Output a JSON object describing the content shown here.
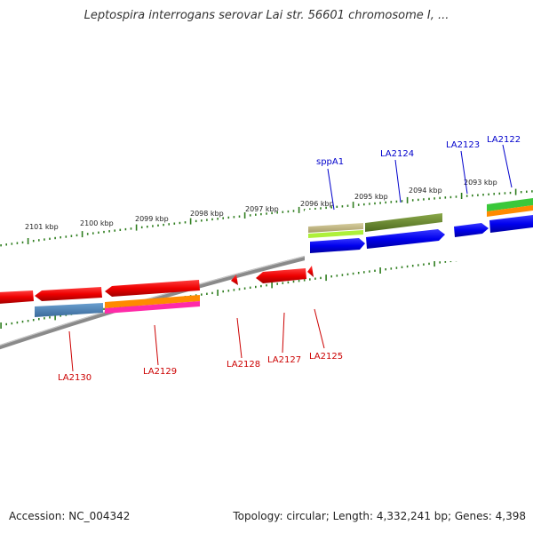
{
  "header": {
    "title": "Leptospira interrogans serovar Lai str. 56601 chromosome I, ..."
  },
  "footer": {
    "accession": "Accession: NC_004342",
    "summary": "Topology: circular; Length: 4,332,241 bp; Genes: 4,398"
  },
  "scale": {
    "ticks": [
      "2101 kbp",
      "2100 kbp",
      "2099 kbp",
      "2098 kbp",
      "2097 kbp",
      "2096 kbp",
      "2095 kbp",
      "2094 kbp",
      "2093 kbp"
    ]
  },
  "genes_top": [
    {
      "label": "sppA1",
      "color": "#0000cc"
    },
    {
      "label": "LA2124",
      "color": "#0000cc"
    },
    {
      "label": "LA2123",
      "color": "#0000cc"
    },
    {
      "label": "LA2122",
      "color": "#0000cc"
    }
  ],
  "genes_bottom": [
    {
      "label": "LA2130",
      "color": "#cc0000"
    },
    {
      "label": "LA2129",
      "color": "#cc0000"
    },
    {
      "label": "LA2128",
      "color": "#cc0000"
    },
    {
      "label": "LA2127",
      "color": "#cc0000"
    },
    {
      "label": "LA2125",
      "color": "#cc0000"
    }
  ],
  "colors": {
    "backbone": "#8a8a8a",
    "tick": "#2e7d1e",
    "forward_gene": "#0000ee",
    "reverse_gene": "#ee0000"
  }
}
